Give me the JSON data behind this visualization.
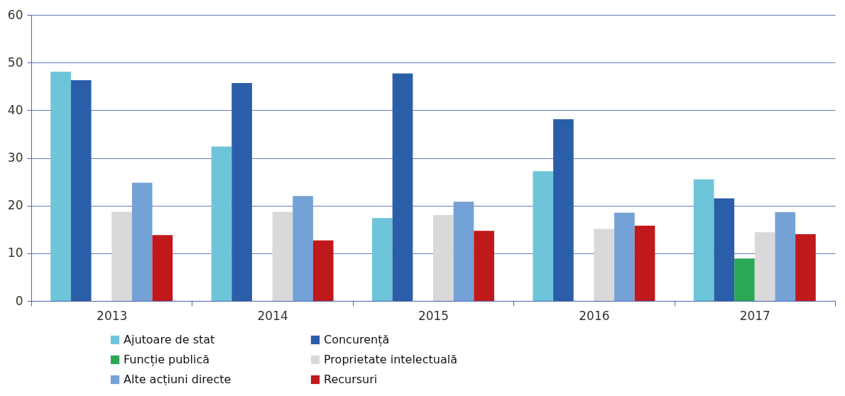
{
  "chart_data": {
    "type": "bar",
    "categories": [
      "2013",
      "2014",
      "2015",
      "2016",
      "2017"
    ],
    "series": [
      {
        "name": "Ajutoare de stat",
        "color": "#6ec5d9",
        "values": [
          48.1,
          32.4,
          17.4,
          27.2,
          25.5
        ]
      },
      {
        "name": "Concurență",
        "color": "#2b5ea8",
        "values": [
          46.3,
          45.7,
          47.7,
          38.1,
          21.5
        ]
      },
      {
        "name": "Funcție publică",
        "color": "#2aa854",
        "values": [
          null,
          null,
          null,
          null,
          8.9
        ]
      },
      {
        "name": "Proprietate intelectuală",
        "color": "#d9d9d9",
        "values": [
          18.7,
          18.7,
          18.0,
          15.1,
          14.4
        ]
      },
      {
        "name": "Alte acțiuni directe",
        "color": "#74a2d6",
        "values": [
          24.8,
          22.0,
          20.8,
          18.5,
          18.6
        ]
      },
      {
        "name": "Recursuri",
        "color": "#c0191b",
        "values": [
          13.8,
          12.7,
          14.7,
          15.8,
          14.0
        ]
      }
    ],
    "ylim": [
      0,
      60
    ],
    "yticks": [
      0,
      10,
      20,
      30,
      40,
      50,
      60
    ],
    "grid": "y",
    "legend": "bottom"
  }
}
